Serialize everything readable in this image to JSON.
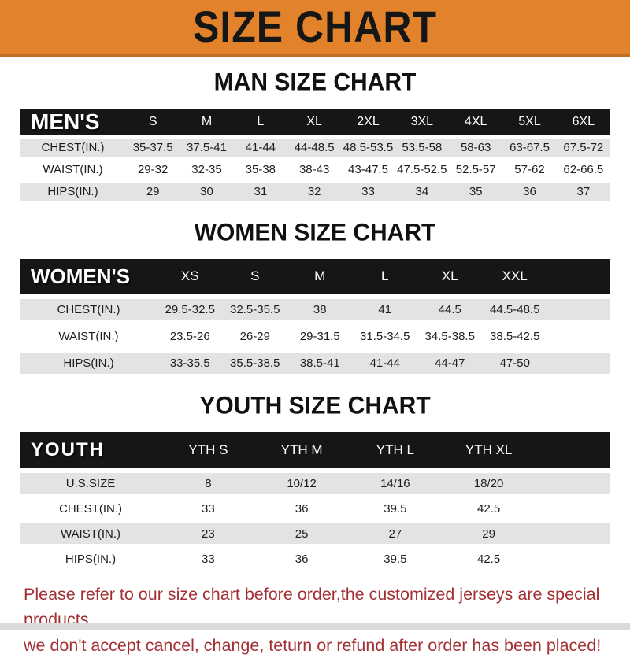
{
  "banner": {
    "title": "SIZE CHART"
  },
  "colors": {
    "banner_bg": "#E2832C",
    "banner_border": "#BF6E22",
    "header_bar_bg": "#161616",
    "row_alt_bg": "#E3E3E3",
    "footer_text": "#A33134"
  },
  "sections": [
    {
      "heading": "MAN SIZE CHART",
      "table": {
        "label": "MEN'S",
        "columns": [
          "S",
          "M",
          "L",
          "XL",
          "2XL",
          "3XL",
          "4XL",
          "5XL",
          "6XL"
        ],
        "rows": [
          {
            "label": "CHEST(IN.)",
            "values": [
              "35-37.5",
              "37.5-41",
              "41-44",
              "44-48.5",
              "48.5-53.5",
              "53.5-58",
              "58-63",
              "63-67.5",
              "67.5-72"
            ]
          },
          {
            "label": "WAIST(IN.)",
            "values": [
              "29-32",
              "32-35",
              "35-38",
              "38-43",
              "43-47.5",
              "47.5-52.5",
              "52.5-57",
              "57-62",
              "62-66.5"
            ]
          },
          {
            "label": "HIPS(IN.)",
            "values": [
              "29",
              "30",
              "31",
              "32",
              "33",
              "34",
              "35",
              "36",
              "37"
            ]
          }
        ]
      }
    },
    {
      "heading": "WOMEN SIZE CHART",
      "table": {
        "label": "WOMEN'S",
        "columns": [
          "XS",
          "S",
          "M",
          "L",
          "XL",
          "XXL"
        ],
        "rows": [
          {
            "label": "CHEST(IN.)",
            "values": [
              "29.5-32.5",
              "32.5-35.5",
              "38",
              "41",
              "44.5",
              "44.5-48.5"
            ]
          },
          {
            "label": "WAIST(IN.)",
            "values": [
              "23.5-26",
              "26-29",
              "29-31.5",
              "31.5-34.5",
              "34.5-38.5",
              "38.5-42.5"
            ]
          },
          {
            "label": "HIPS(IN.)",
            "values": [
              "33-35.5",
              "35.5-38.5",
              "38.5-41",
              "41-44",
              "44-47",
              "47-50"
            ]
          }
        ]
      }
    },
    {
      "heading": "YOUTH SIZE CHART",
      "table": {
        "label": "YOUTH",
        "columns": [
          "YTH S",
          "YTH M",
          "YTH L",
          "YTH XL"
        ],
        "rows": [
          {
            "label": "U.S.SIZE",
            "values": [
              "8",
              "10/12",
              "14/16",
              "18/20"
            ]
          },
          {
            "label": "CHEST(IN.)",
            "values": [
              "33",
              "36",
              "39.5",
              "42.5"
            ]
          },
          {
            "label": "WAIST(IN.)",
            "values": [
              "23",
              "25",
              "27",
              "29"
            ]
          },
          {
            "label": "HIPS(IN.)",
            "values": [
              "33",
              "36",
              "39.5",
              "42.5"
            ]
          }
        ]
      }
    }
  ],
  "footer": {
    "line1": "Please refer to our size chart before order,the customized jerseys are special products,",
    "line2": "we don't accept cancel, change, teturn or refund after order has been placed!"
  }
}
